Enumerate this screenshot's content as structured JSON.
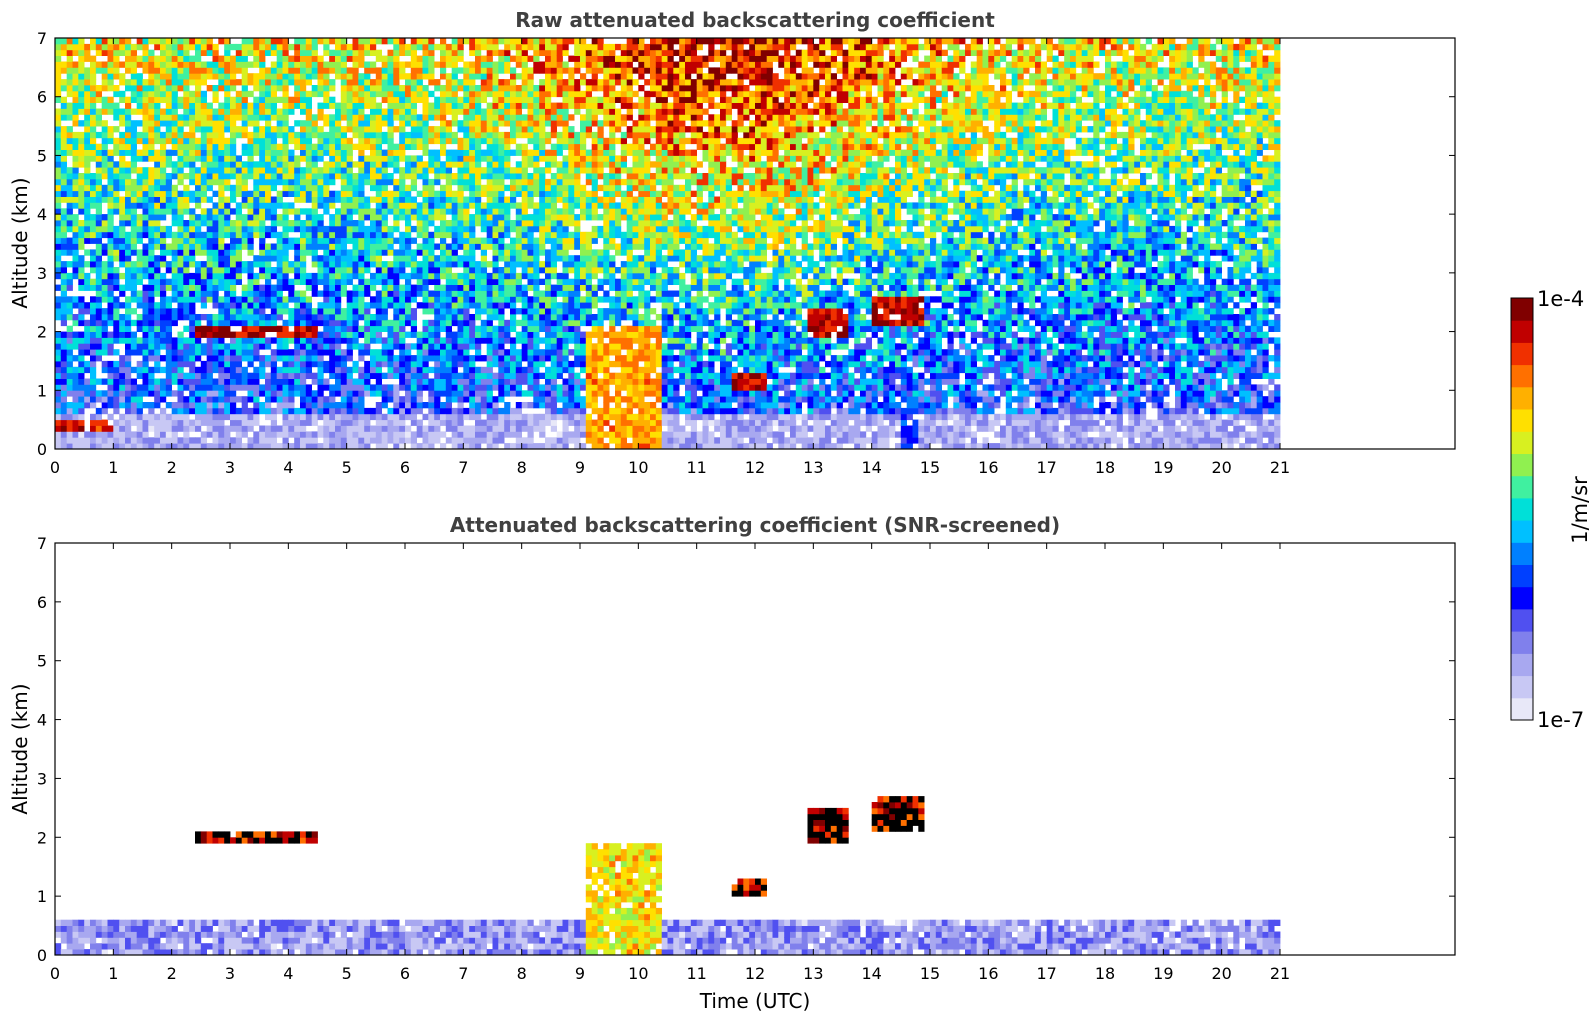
{
  "colors": {
    "cmap": [
      "#e8e8f8",
      "#c8c8f4",
      "#a8a8f0",
      "#8080ec",
      "#5050f0",
      "#0000ff",
      "#0040ff",
      "#0080ff",
      "#00c0ff",
      "#00e0d8",
      "#40f0a0",
      "#90f050",
      "#d8f020",
      "#ffe000",
      "#ffb000",
      "#ff7000",
      "#f03000",
      "#c00000",
      "#800000"
    ],
    "axis": "#000000",
    "title": "#404040",
    "black_patch": "#000000"
  },
  "chart_data": [
    {
      "type": "heatmap",
      "title": "Raw attenuated backscattering coefficient",
      "xlabel": "",
      "ylabel": "Altitude (km)",
      "xlim": [
        0,
        24
      ],
      "ylim": [
        0,
        7
      ],
      "xticks": [
        "0",
        "1",
        "2",
        "3",
        "4",
        "5",
        "6",
        "7",
        "8",
        "9",
        "10",
        "11",
        "12",
        "13",
        "14",
        "15",
        "16",
        "17",
        "18",
        "19",
        "20",
        "21"
      ],
      "yticks": [
        "0",
        "1",
        "2",
        "3",
        "4",
        "5",
        "6",
        "7"
      ],
      "data_end_hour": 21,
      "features": [
        {
          "name": "near-surface aerosol layer",
          "t0": 0,
          "t1": 21,
          "z0": 0,
          "z1": 0.6,
          "level": 0.2
        },
        {
          "name": "low dense layer",
          "t0": 0.05,
          "t1": 1.0,
          "z0": 0.3,
          "z1": 0.5,
          "level": 0.95
        },
        {
          "name": "cloud ~2 km",
          "t0": 2.4,
          "t1": 4.5,
          "z0": 1.95,
          "z1": 2.1,
          "level": 1.0
        },
        {
          "name": "convective plume",
          "t0": 9.1,
          "t1": 10.4,
          "z0": 0,
          "z1": 2.1,
          "level": 0.85
        },
        {
          "name": "cloud 12 h",
          "t0": 11.6,
          "t1": 12.2,
          "z0": 1.0,
          "z1": 1.3,
          "level": 1.0
        },
        {
          "name": "cloud 13 h",
          "t0": 12.9,
          "t1": 13.6,
          "z0": 1.9,
          "z1": 2.4,
          "level": 1.0
        },
        {
          "name": "cloud 14.5 h",
          "t0": 14.0,
          "t1": 14.9,
          "z0": 2.1,
          "z1": 2.6,
          "level": 1.0
        },
        {
          "name": "plume 14.6 h",
          "t0": 14.5,
          "t1": 14.8,
          "z0": 0,
          "z1": 0.9,
          "level": 0.4
        }
      ]
    },
    {
      "type": "heatmap",
      "title": "Attenuated backscattering coefficient (SNR-screened)",
      "xlabel": "Time (UTC)",
      "ylabel": "Altitude (km)",
      "xlim": [
        0,
        24
      ],
      "ylim": [
        0,
        7
      ],
      "xticks": [
        "0",
        "1",
        "2",
        "3",
        "4",
        "5",
        "6",
        "7",
        "8",
        "9",
        "10",
        "11",
        "12",
        "13",
        "14",
        "15",
        "16",
        "17",
        "18",
        "19",
        "20",
        "21"
      ],
      "yticks": [
        "0",
        "1",
        "2",
        "3",
        "4",
        "5",
        "6",
        "7"
      ],
      "data_end_hour": 21,
      "features": [
        {
          "name": "boundary layer",
          "t0": 0,
          "t1": 21,
          "z0": 0,
          "z1": 0.65,
          "level": 0.25
        },
        {
          "name": "convective plume",
          "t0": 9.1,
          "t1": 10.4,
          "z0": 0,
          "z1": 1.9,
          "level": 0.8
        },
        {
          "name": "cloud ~2 km",
          "t0": 2.4,
          "t1": 4.5,
          "z0": 1.95,
          "z1": 2.1,
          "level": 1.0
        },
        {
          "name": "cloud 12 h",
          "t0": 11.6,
          "t1": 12.2,
          "z0": 1.0,
          "z1": 1.3,
          "level": 1.0
        },
        {
          "name": "cloud 13 h",
          "t0": 12.9,
          "t1": 13.6,
          "z0": 1.9,
          "z1": 2.5,
          "level": 1.0
        },
        {
          "name": "cloud 14.5 h",
          "t0": 14.0,
          "t1": 14.9,
          "z0": 2.1,
          "z1": 2.7,
          "level": 1.0
        }
      ]
    }
  ],
  "colorbar": {
    "max_label": "1e-4",
    "min_label": "1e-7",
    "unit_label": "1/m/sr"
  }
}
